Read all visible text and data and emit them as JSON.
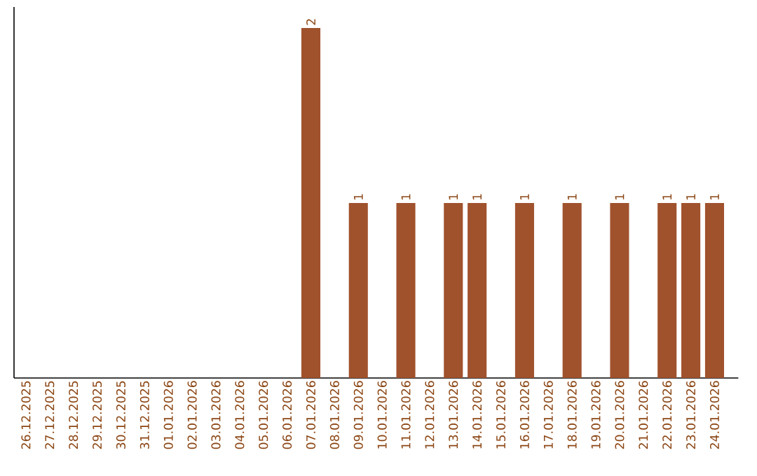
{
  "chart_data": {
    "type": "bar",
    "categories": [
      "26.12.2025",
      "27.12.2025",
      "28.12.2025",
      "29.12.2025",
      "30.12.2025",
      "31.12.2025",
      "01.01.2026",
      "02.01.2026",
      "03.01.2026",
      "04.01.2026",
      "05.01.2026",
      "06.01.2026",
      "07.01.2026",
      "08.01.2026",
      "09.01.2026",
      "10.01.2026",
      "11.01.2026",
      "12.01.2026",
      "13.01.2026",
      "14.01.2026",
      "15.01.2026",
      "16.01.2026",
      "17.01.2026",
      "18.01.2026",
      "19.01.2026",
      "20.01.2026",
      "21.01.2026",
      "22.01.2026",
      "23.01.2026",
      "24.01.2026"
    ],
    "values": [
      null,
      null,
      null,
      null,
      null,
      null,
      null,
      null,
      null,
      null,
      null,
      null,
      2,
      null,
      1,
      null,
      1,
      null,
      1,
      1,
      null,
      1,
      null,
      1,
      null,
      1,
      null,
      1,
      1,
      1
    ],
    "value_labels": [
      null,
      null,
      null,
      null,
      null,
      null,
      null,
      null,
      null,
      null,
      null,
      null,
      "2",
      null,
      "1",
      null,
      "1",
      null,
      "1",
      "1",
      null,
      "1",
      null,
      "1",
      null,
      "1",
      null,
      "1",
      "1",
      "1"
    ],
    "color": "#a0522d",
    "tick_labels": "x"
  }
}
